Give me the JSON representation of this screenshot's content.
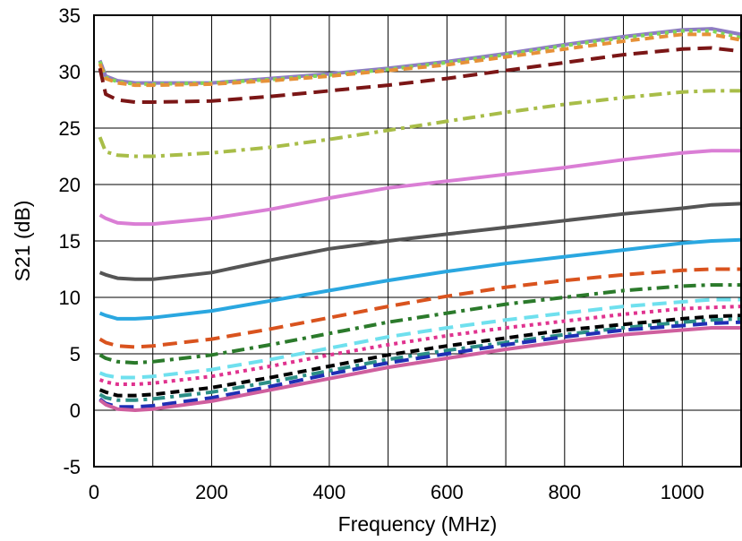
{
  "chart_data": {
    "type": "line",
    "title": "",
    "xlabel": "Frequency (MHz)",
    "ylabel": "S21 (dB)",
    "xlim": [
      0,
      1100
    ],
    "ylim": [
      -5,
      35
    ],
    "x_ticks": [
      0,
      200,
      400,
      600,
      800,
      1000
    ],
    "x_tick_labels": [
      "0",
      "200",
      "400",
      "600",
      "800",
      "1000"
    ],
    "x_grid": [
      0,
      100,
      200,
      300,
      400,
      500,
      600,
      700,
      800,
      900,
      1000,
      1100
    ],
    "y_ticks": [
      -5,
      0,
      5,
      10,
      15,
      20,
      25,
      30,
      35
    ],
    "y_tick_labels": [
      "-5",
      "0",
      "5",
      "10",
      "15",
      "20",
      "25",
      "30",
      "35"
    ],
    "grid": true,
    "x": [
      10,
      20,
      40,
      70,
      100,
      200,
      300,
      400,
      500,
      600,
      700,
      800,
      900,
      1000,
      1050,
      1100
    ],
    "series": [
      {
        "color": "#8e7cc3",
        "dash": "solid",
        "values": [
          31.0,
          29.6,
          29.2,
          29.0,
          29.0,
          29.0,
          29.4,
          29.8,
          30.3,
          30.9,
          31.6,
          32.4,
          33.1,
          33.7,
          33.8,
          33.3
        ]
      },
      {
        "color": "#7ed957",
        "dash": "dot",
        "values": [
          30.9,
          29.5,
          29.1,
          28.9,
          28.9,
          29.0,
          29.3,
          29.7,
          30.2,
          30.8,
          31.5,
          32.3,
          33.0,
          33.6,
          33.6,
          33.0
        ]
      },
      {
        "color": "#e69138",
        "dash": "dash",
        "values": [
          30.7,
          29.4,
          29.0,
          28.8,
          28.8,
          28.9,
          29.2,
          29.6,
          30.1,
          30.6,
          31.3,
          32.0,
          32.7,
          33.3,
          33.3,
          32.8
        ]
      },
      {
        "color": "#7b1616",
        "dash": "longdash",
        "values": [
          30.3,
          28.0,
          27.5,
          27.3,
          27.3,
          27.4,
          27.8,
          28.3,
          28.8,
          29.4,
          30.1,
          30.8,
          31.5,
          32.0,
          32.1,
          31.8
        ]
      },
      {
        "color": "#a8bd48",
        "dash": "dashdot",
        "values": [
          24.2,
          22.9,
          22.6,
          22.5,
          22.5,
          22.8,
          23.3,
          24.0,
          24.8,
          25.6,
          26.4,
          27.1,
          27.7,
          28.2,
          28.3,
          28.3
        ]
      },
      {
        "color": "#da7ed5",
        "dash": "solid",
        "values": [
          17.3,
          17.0,
          16.6,
          16.5,
          16.5,
          17.0,
          17.8,
          18.8,
          19.7,
          20.3,
          20.9,
          21.5,
          22.2,
          22.8,
          23.0,
          23.0
        ]
      },
      {
        "color": "#555555",
        "dash": "solid",
        "values": [
          12.2,
          12.0,
          11.7,
          11.6,
          11.6,
          12.2,
          13.3,
          14.3,
          15.0,
          15.6,
          16.2,
          16.8,
          17.4,
          17.9,
          18.2,
          18.3
        ]
      },
      {
        "color": "#2aa7e0",
        "dash": "solid",
        "values": [
          8.6,
          8.4,
          8.1,
          8.1,
          8.2,
          8.8,
          9.7,
          10.6,
          11.5,
          12.3,
          13.0,
          13.6,
          14.2,
          14.8,
          15.0,
          15.1
        ]
      },
      {
        "color": "#d9531e",
        "dash": "longdash",
        "values": [
          6.3,
          6.0,
          5.7,
          5.6,
          5.7,
          6.3,
          7.2,
          8.2,
          9.2,
          10.1,
          10.9,
          11.5,
          12.0,
          12.4,
          12.5,
          12.5
        ]
      },
      {
        "color": "#2b7a2b",
        "dash": "dashdot",
        "values": [
          4.9,
          4.6,
          4.3,
          4.2,
          4.3,
          4.9,
          5.8,
          6.8,
          7.8,
          8.6,
          9.4,
          10.0,
          10.6,
          11.0,
          11.1,
          11.1
        ]
      },
      {
        "color": "#6fe0ee",
        "dash": "longdash",
        "values": [
          3.3,
          3.1,
          2.9,
          2.9,
          3.0,
          3.6,
          4.5,
          5.5,
          6.5,
          7.3,
          8.0,
          8.6,
          9.2,
          9.6,
          9.8,
          9.8
        ]
      },
      {
        "color": "#e0338f",
        "dash": "dot",
        "values": [
          2.7,
          2.5,
          2.3,
          2.3,
          2.4,
          3.0,
          3.9,
          4.9,
          5.8,
          6.6,
          7.3,
          7.9,
          8.5,
          9.0,
          9.1,
          9.2
        ]
      },
      {
        "color": "#000000",
        "dash": "dash",
        "values": [
          1.8,
          1.6,
          1.3,
          1.3,
          1.4,
          2.0,
          2.9,
          3.9,
          4.9,
          5.7,
          6.4,
          7.1,
          7.6,
          8.1,
          8.3,
          8.4
        ]
      },
      {
        "color": "#2b8f86",
        "dash": "dashdot",
        "values": [
          1.4,
          1.1,
          0.9,
          0.9,
          1.0,
          1.6,
          2.5,
          3.5,
          4.5,
          5.3,
          6.0,
          6.7,
          7.3,
          7.8,
          8.0,
          8.1
        ]
      },
      {
        "color": "#1f2fb5",
        "dash": "longdash",
        "values": [
          1.0,
          0.6,
          0.3,
          0.3,
          0.4,
          1.1,
          2.1,
          3.2,
          4.2,
          5.0,
          5.8,
          6.5,
          7.1,
          7.5,
          7.7,
          7.8
        ]
      },
      {
        "color": "#cf5f9e",
        "dash": "solid",
        "values": [
          0.9,
          0.5,
          0.1,
          0.0,
          0.1,
          0.8,
          1.8,
          2.8,
          3.8,
          4.6,
          5.4,
          6.1,
          6.7,
          7.1,
          7.3,
          7.3
        ]
      }
    ]
  }
}
